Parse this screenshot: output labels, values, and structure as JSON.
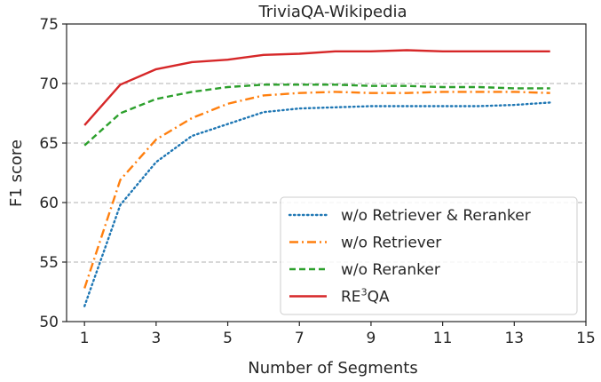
{
  "chart_data": {
    "type": "line",
    "title": "TriviaQA-Wikipedia",
    "xlabel": "Number of Segments",
    "ylabel": "F1 score",
    "xlim": [
      0.5,
      15
    ],
    "ylim": [
      50,
      75
    ],
    "xticks": [
      1,
      3,
      5,
      7,
      9,
      11,
      13,
      15
    ],
    "yticks": [
      50,
      55,
      60,
      65,
      70,
      75
    ],
    "grid": "horizontal-dashed",
    "legend_position": "lower-right",
    "x": [
      1,
      2,
      3,
      4,
      5,
      6,
      7,
      8,
      9,
      10,
      11,
      12,
      13,
      14
    ],
    "series": [
      {
        "name": "w/o Retriever & Reranker",
        "color": "#1f77b4",
        "style": "dotted",
        "values": [
          51.3,
          59.8,
          63.4,
          65.6,
          66.6,
          67.6,
          67.9,
          68.0,
          68.1,
          68.1,
          68.1,
          68.1,
          68.2,
          68.4
        ]
      },
      {
        "name": "w/o Retriever",
        "color": "#ff7f0e",
        "style": "dashdot",
        "values": [
          52.8,
          61.9,
          65.3,
          67.1,
          68.3,
          69.0,
          69.2,
          69.3,
          69.2,
          69.2,
          69.3,
          69.3,
          69.3,
          69.2
        ]
      },
      {
        "name": "w/o Reranker",
        "color": "#2ca02c",
        "style": "dashed",
        "values": [
          64.8,
          67.5,
          68.7,
          69.3,
          69.7,
          69.9,
          69.9,
          69.9,
          69.8,
          69.8,
          69.7,
          69.7,
          69.6,
          69.6
        ]
      },
      {
        "name": "RE",
        "name_sup": "3",
        "name_suffix": "QA",
        "color": "#d62728",
        "style": "solid",
        "values": [
          66.5,
          69.9,
          71.2,
          71.8,
          72.0,
          72.4,
          72.5,
          72.7,
          72.7,
          72.8,
          72.7,
          72.7,
          72.7,
          72.7
        ]
      }
    ]
  }
}
